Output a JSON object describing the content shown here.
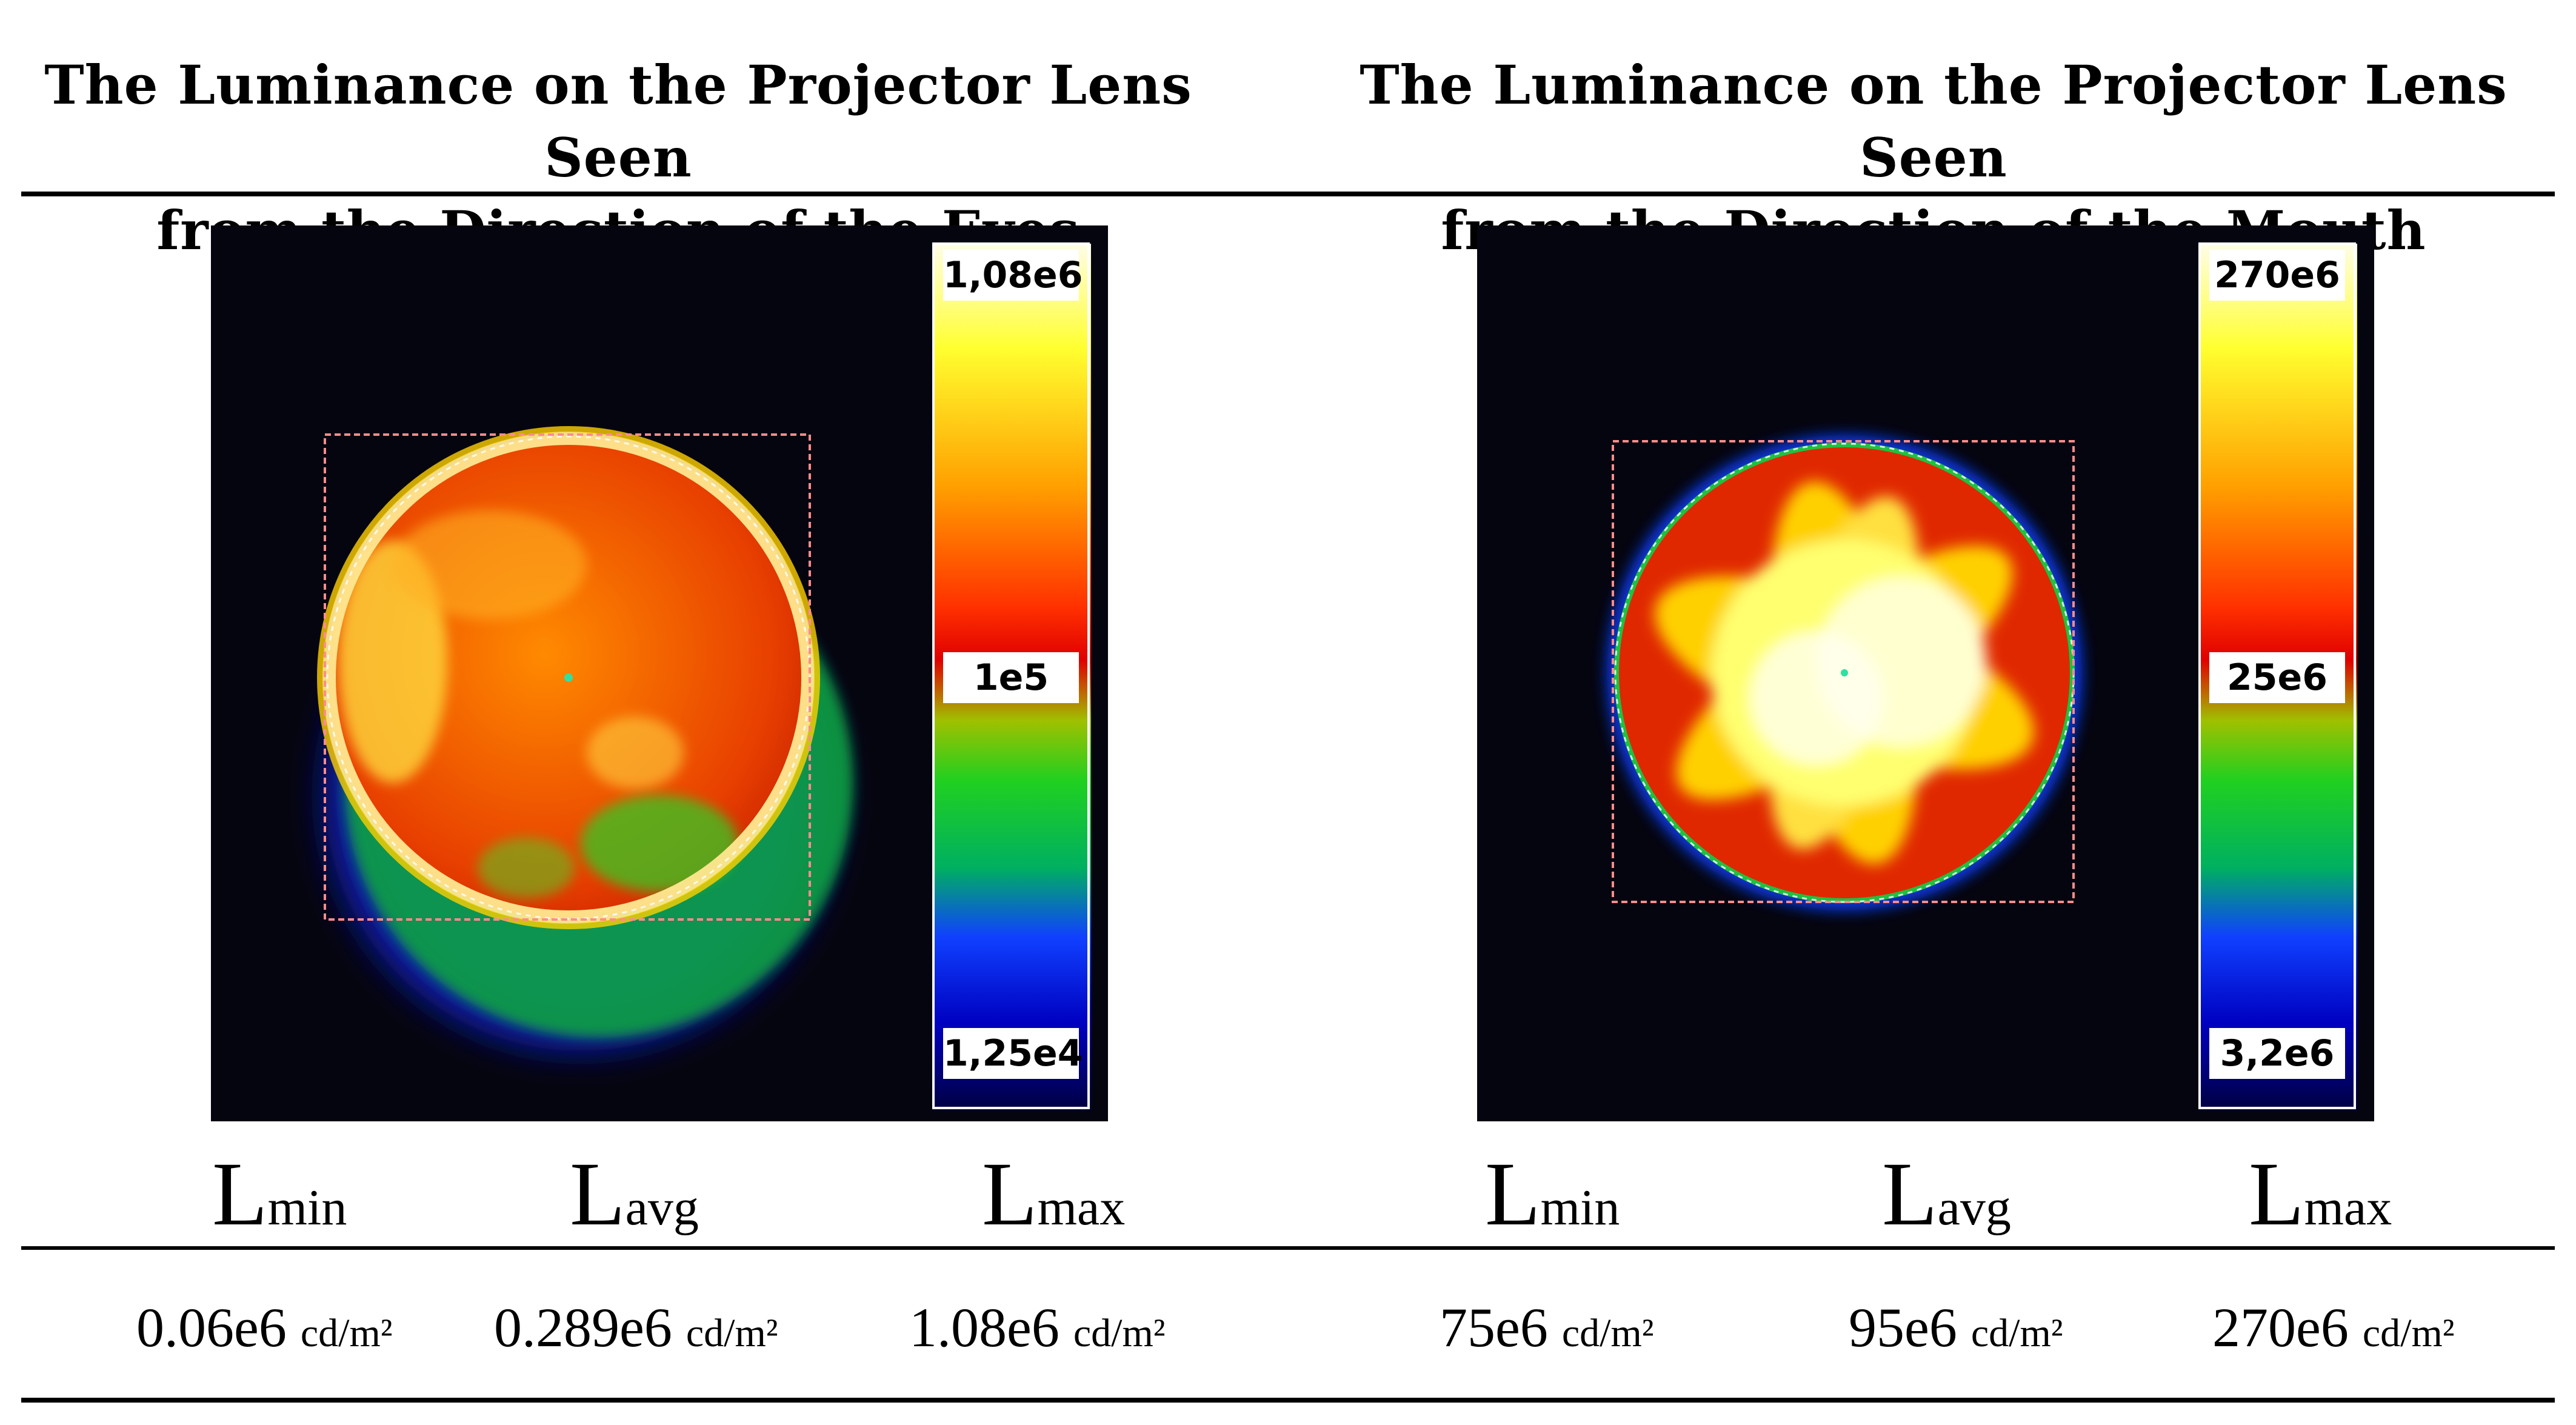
{
  "figure": {
    "left": {
      "title_line1": "The Luminance on the Projector Lens Seen",
      "title_line2": "from the Direction of the Eyes",
      "scale": {
        "max": "1,08e6",
        "mid": "1e5",
        "min": "1,25e4"
      },
      "metrics": [
        {
          "symbol": "L",
          "sub": "min",
          "value": "0.06e6",
          "unit": "cd/m²"
        },
        {
          "symbol": "L",
          "sub": "avg",
          "value": "0.289e6",
          "unit": "cd/m²"
        },
        {
          "symbol": "L",
          "sub": "max",
          "value": "1.08e6",
          "unit": "cd/m²"
        }
      ]
    },
    "right": {
      "title_line1": "The Luminance on the Projector Lens Seen",
      "title_line2": "from the Direction of the Mouth",
      "scale": {
        "max": "270e6",
        "mid": "25e6",
        "min": "3,2e6"
      },
      "metrics": [
        {
          "symbol": "L",
          "sub": "min",
          "value": "75e6",
          "unit": "cd/m²"
        },
        {
          "symbol": "L",
          "sub": "avg",
          "value": "95e6",
          "unit": "cd/m²"
        },
        {
          "symbol": "L",
          "sub": "max",
          "value": "270e6",
          "unit": "cd/m²"
        }
      ]
    },
    "colors": {
      "background": "#050510",
      "rule": "#000000",
      "roi": "#ff8c8c"
    }
  }
}
